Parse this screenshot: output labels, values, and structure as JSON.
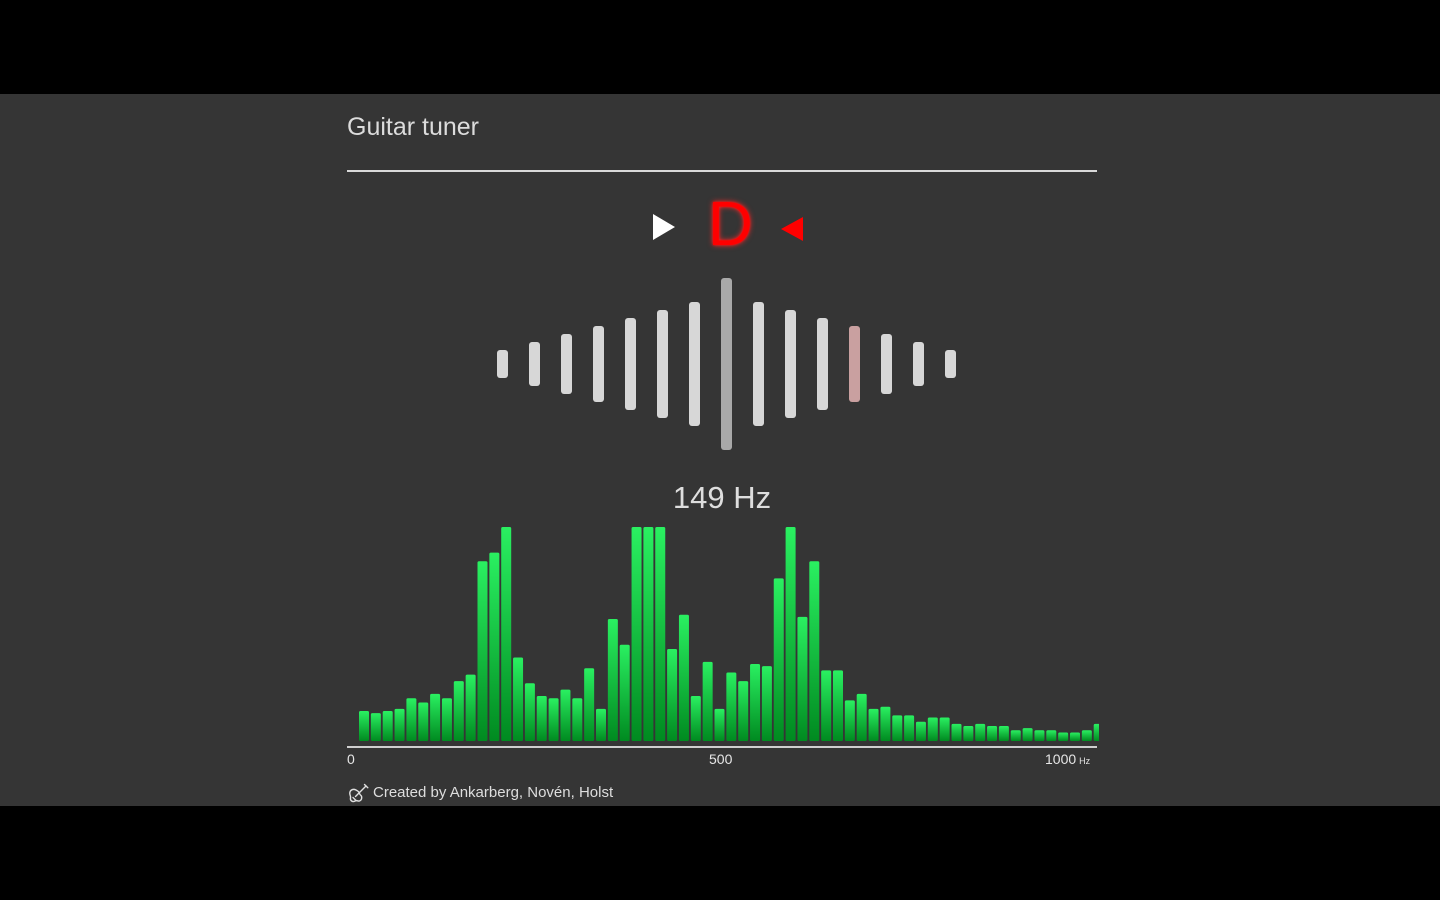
{
  "app": {
    "title": "Guitar tuner"
  },
  "tuner": {
    "note": "D",
    "frequency": "149 Hz",
    "meter": {
      "center_index": 7,
      "highlight_index": 11,
      "bar_count": 15
    },
    "colors": {
      "note": "#ff0000",
      "left_arrow": "#ffffff",
      "right_arrow": "#ff0000",
      "meter_normal": "#d7d7d7",
      "meter_center": "#a9a9a9",
      "meter_highlight": "#c9a0a0"
    },
    "icons": {
      "left": "play-right-arrow",
      "right": "red-left-arrow"
    }
  },
  "spectrum": {
    "axis_labels": [
      "0",
      "500",
      "1000"
    ],
    "unit": "Hz",
    "colors": {
      "bar_top": "#2af061",
      "bar_bottom": "#008a20",
      "axis": "#cfcfcf"
    }
  },
  "chart_data": {
    "type": "bar",
    "title": "",
    "xlabel": "Hz",
    "ylabel": "",
    "x_range": [
      0,
      1000
    ],
    "ylim": [
      0,
      100
    ],
    "bin_width_hz": 16,
    "x_ticks": [
      0,
      500,
      1000
    ],
    "values": [
      14,
      13,
      14,
      15,
      20,
      18,
      22,
      20,
      28,
      31,
      84,
      88,
      100,
      39,
      27,
      21,
      20,
      24,
      20,
      34,
      15,
      57,
      45,
      100,
      100,
      100,
      43,
      59,
      21,
      37,
      15,
      32,
      28,
      36,
      35,
      76,
      100,
      58,
      84,
      33,
      33,
      19,
      22,
      15,
      16,
      12,
      12,
      9,
      11,
      11,
      8,
      7,
      8,
      7,
      7,
      5,
      6,
      5,
      5,
      4,
      4,
      5,
      8
    ]
  },
  "footer": {
    "credit": "Created by Ankarberg, Novén, Holst",
    "icon": "guitar-icon"
  }
}
